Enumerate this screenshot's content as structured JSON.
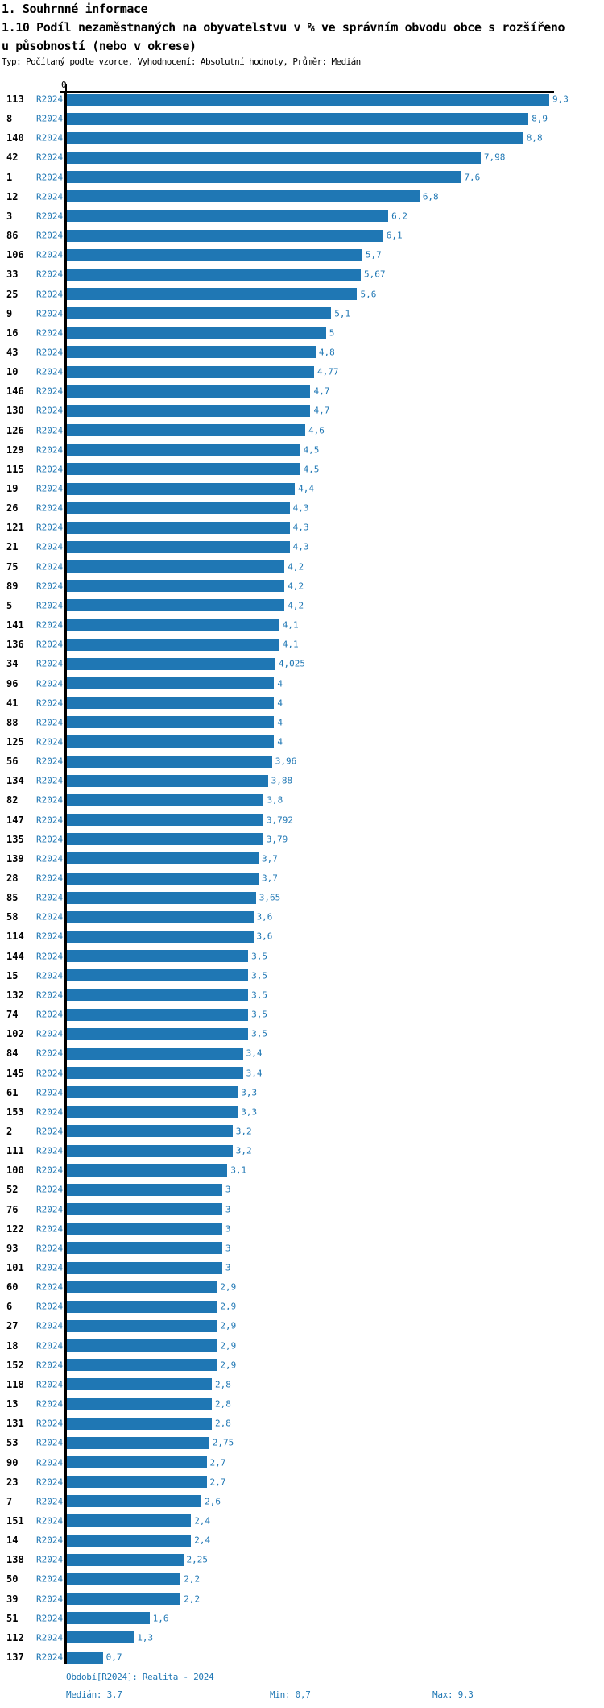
{
  "header": {
    "section_title": "1. Souhrnné informace",
    "chart_title_line1": "1.10 Podíl nezaměstnaných na obyvatelstvu v % ve správním obvodu obce s rozšířeno",
    "chart_title_line2": "u působností (nebo v okrese)",
    "meta": "Typ: Počítaný podle vzorce, Vyhodnocení: Absolutní hodnoty, Průměr: Medián"
  },
  "chart_data": {
    "type": "bar",
    "orientation": "horizontal",
    "title": "1.10 Podíl nezaměstnaných na obyvatelstvu v % ve správním obvodu obce s rozšířeno u působností (nebo v okrese)",
    "x_axis": {
      "origin_label": "0",
      "min": 0,
      "max": 9.3,
      "grid": false
    },
    "median_line_value": 3.7,
    "period": "R2024",
    "legend_position": "none",
    "rows": [
      {
        "id": "113",
        "period": "R2024",
        "value": 9.3,
        "label": "9,3"
      },
      {
        "id": "8",
        "period": "R2024",
        "value": 8.9,
        "label": "8,9"
      },
      {
        "id": "140",
        "period": "R2024",
        "value": 8.8,
        "label": "8,8"
      },
      {
        "id": "42",
        "period": "R2024",
        "value": 7.98,
        "label": "7,98"
      },
      {
        "id": "1",
        "period": "R2024",
        "value": 7.6,
        "label": "7,6"
      },
      {
        "id": "12",
        "period": "R2024",
        "value": 6.8,
        "label": "6,8"
      },
      {
        "id": "3",
        "period": "R2024",
        "value": 6.2,
        "label": "6,2"
      },
      {
        "id": "86",
        "period": "R2024",
        "value": 6.1,
        "label": "6,1"
      },
      {
        "id": "106",
        "period": "R2024",
        "value": 5.7,
        "label": "5,7"
      },
      {
        "id": "33",
        "period": "R2024",
        "value": 5.67,
        "label": "5,67"
      },
      {
        "id": "25",
        "period": "R2024",
        "value": 5.6,
        "label": "5,6"
      },
      {
        "id": "9",
        "period": "R2024",
        "value": 5.1,
        "label": "5,1"
      },
      {
        "id": "16",
        "period": "R2024",
        "value": 5,
        "label": "5"
      },
      {
        "id": "43",
        "period": "R2024",
        "value": 4.8,
        "label": "4,8"
      },
      {
        "id": "10",
        "period": "R2024",
        "value": 4.77,
        "label": "4,77"
      },
      {
        "id": "146",
        "period": "R2024",
        "value": 4.7,
        "label": "4,7"
      },
      {
        "id": "130",
        "period": "R2024",
        "value": 4.7,
        "label": "4,7"
      },
      {
        "id": "126",
        "period": "R2024",
        "value": 4.6,
        "label": "4,6"
      },
      {
        "id": "129",
        "period": "R2024",
        "value": 4.5,
        "label": "4,5"
      },
      {
        "id": "115",
        "period": "R2024",
        "value": 4.5,
        "label": "4,5"
      },
      {
        "id": "19",
        "period": "R2024",
        "value": 4.4,
        "label": "4,4"
      },
      {
        "id": "26",
        "period": "R2024",
        "value": 4.3,
        "label": "4,3"
      },
      {
        "id": "121",
        "period": "R2024",
        "value": 4.3,
        "label": "4,3"
      },
      {
        "id": "21",
        "period": "R2024",
        "value": 4.3,
        "label": "4,3"
      },
      {
        "id": "75",
        "period": "R2024",
        "value": 4.2,
        "label": "4,2"
      },
      {
        "id": "89",
        "period": "R2024",
        "value": 4.2,
        "label": "4,2"
      },
      {
        "id": "5",
        "period": "R2024",
        "value": 4.2,
        "label": "4,2"
      },
      {
        "id": "141",
        "period": "R2024",
        "value": 4.1,
        "label": "4,1"
      },
      {
        "id": "136",
        "period": "R2024",
        "value": 4.1,
        "label": "4,1"
      },
      {
        "id": "34",
        "period": "R2024",
        "value": 4.025,
        "label": "4,025"
      },
      {
        "id": "96",
        "period": "R2024",
        "value": 4,
        "label": "4"
      },
      {
        "id": "41",
        "period": "R2024",
        "value": 4,
        "label": "4"
      },
      {
        "id": "88",
        "period": "R2024",
        "value": 4,
        "label": "4"
      },
      {
        "id": "125",
        "period": "R2024",
        "value": 4,
        "label": "4"
      },
      {
        "id": "56",
        "period": "R2024",
        "value": 3.96,
        "label": "3,96"
      },
      {
        "id": "134",
        "period": "R2024",
        "value": 3.88,
        "label": "3,88"
      },
      {
        "id": "82",
        "period": "R2024",
        "value": 3.8,
        "label": "3,8"
      },
      {
        "id": "147",
        "period": "R2024",
        "value": 3.792,
        "label": "3,792"
      },
      {
        "id": "135",
        "period": "R2024",
        "value": 3.79,
        "label": "3,79"
      },
      {
        "id": "139",
        "period": "R2024",
        "value": 3.7,
        "label": "3,7"
      },
      {
        "id": "28",
        "period": "R2024",
        "value": 3.7,
        "label": "3,7"
      },
      {
        "id": "85",
        "period": "R2024",
        "value": 3.65,
        "label": "3,65"
      },
      {
        "id": "58",
        "period": "R2024",
        "value": 3.6,
        "label": "3,6"
      },
      {
        "id": "114",
        "period": "R2024",
        "value": 3.6,
        "label": "3,6"
      },
      {
        "id": "144",
        "period": "R2024",
        "value": 3.5,
        "label": "3,5"
      },
      {
        "id": "15",
        "period": "R2024",
        "value": 3.5,
        "label": "3,5"
      },
      {
        "id": "132",
        "period": "R2024",
        "value": 3.5,
        "label": "3,5"
      },
      {
        "id": "74",
        "period": "R2024",
        "value": 3.5,
        "label": "3,5"
      },
      {
        "id": "102",
        "period": "R2024",
        "value": 3.5,
        "label": "3,5"
      },
      {
        "id": "84",
        "period": "R2024",
        "value": 3.4,
        "label": "3,4"
      },
      {
        "id": "145",
        "period": "R2024",
        "value": 3.4,
        "label": "3,4"
      },
      {
        "id": "61",
        "period": "R2024",
        "value": 3.3,
        "label": "3,3"
      },
      {
        "id": "153",
        "period": "R2024",
        "value": 3.3,
        "label": "3,3"
      },
      {
        "id": "2",
        "period": "R2024",
        "value": 3.2,
        "label": "3,2"
      },
      {
        "id": "111",
        "period": "R2024",
        "value": 3.2,
        "label": "3,2"
      },
      {
        "id": "100",
        "period": "R2024",
        "value": 3.1,
        "label": "3,1"
      },
      {
        "id": "52",
        "period": "R2024",
        "value": 3,
        "label": "3"
      },
      {
        "id": "76",
        "period": "R2024",
        "value": 3,
        "label": "3"
      },
      {
        "id": "122",
        "period": "R2024",
        "value": 3,
        "label": "3"
      },
      {
        "id": "93",
        "period": "R2024",
        "value": 3,
        "label": "3"
      },
      {
        "id": "101",
        "period": "R2024",
        "value": 3,
        "label": "3"
      },
      {
        "id": "60",
        "period": "R2024",
        "value": 2.9,
        "label": "2,9"
      },
      {
        "id": "6",
        "period": "R2024",
        "value": 2.9,
        "label": "2,9"
      },
      {
        "id": "27",
        "period": "R2024",
        "value": 2.9,
        "label": "2,9"
      },
      {
        "id": "18",
        "period": "R2024",
        "value": 2.9,
        "label": "2,9"
      },
      {
        "id": "152",
        "period": "R2024",
        "value": 2.9,
        "label": "2,9"
      },
      {
        "id": "118",
        "period": "R2024",
        "value": 2.8,
        "label": "2,8"
      },
      {
        "id": "13",
        "period": "R2024",
        "value": 2.8,
        "label": "2,8"
      },
      {
        "id": "131",
        "period": "R2024",
        "value": 2.8,
        "label": "2,8"
      },
      {
        "id": "53",
        "period": "R2024",
        "value": 2.75,
        "label": "2,75"
      },
      {
        "id": "90",
        "period": "R2024",
        "value": 2.7,
        "label": "2,7"
      },
      {
        "id": "23",
        "period": "R2024",
        "value": 2.7,
        "label": "2,7"
      },
      {
        "id": "7",
        "period": "R2024",
        "value": 2.6,
        "label": "2,6"
      },
      {
        "id": "151",
        "period": "R2024",
        "value": 2.4,
        "label": "2,4"
      },
      {
        "id": "14",
        "period": "R2024",
        "value": 2.4,
        "label": "2,4"
      },
      {
        "id": "138",
        "period": "R2024",
        "value": 2.25,
        "label": "2,25"
      },
      {
        "id": "50",
        "period": "R2024",
        "value": 2.2,
        "label": "2,2"
      },
      {
        "id": "39",
        "period": "R2024",
        "value": 2.2,
        "label": "2,2"
      },
      {
        "id": "51",
        "period": "R2024",
        "value": 1.6,
        "label": "1,6"
      },
      {
        "id": "112",
        "period": "R2024",
        "value": 1.3,
        "label": "1,3"
      },
      {
        "id": "137",
        "period": "R2024",
        "value": 0.7,
        "label": "0,7"
      }
    ]
  },
  "footer": {
    "period": "Období[R2024]: Realita - 2024",
    "median": "Medián: 3,7",
    "min": "Min: 0,7",
    "max": "Max: 9,3"
  },
  "colors": {
    "bar": "#1f77b4",
    "accent_text": "#1f77b4",
    "median_line": "#1f77b4",
    "axis": "#000000"
  }
}
